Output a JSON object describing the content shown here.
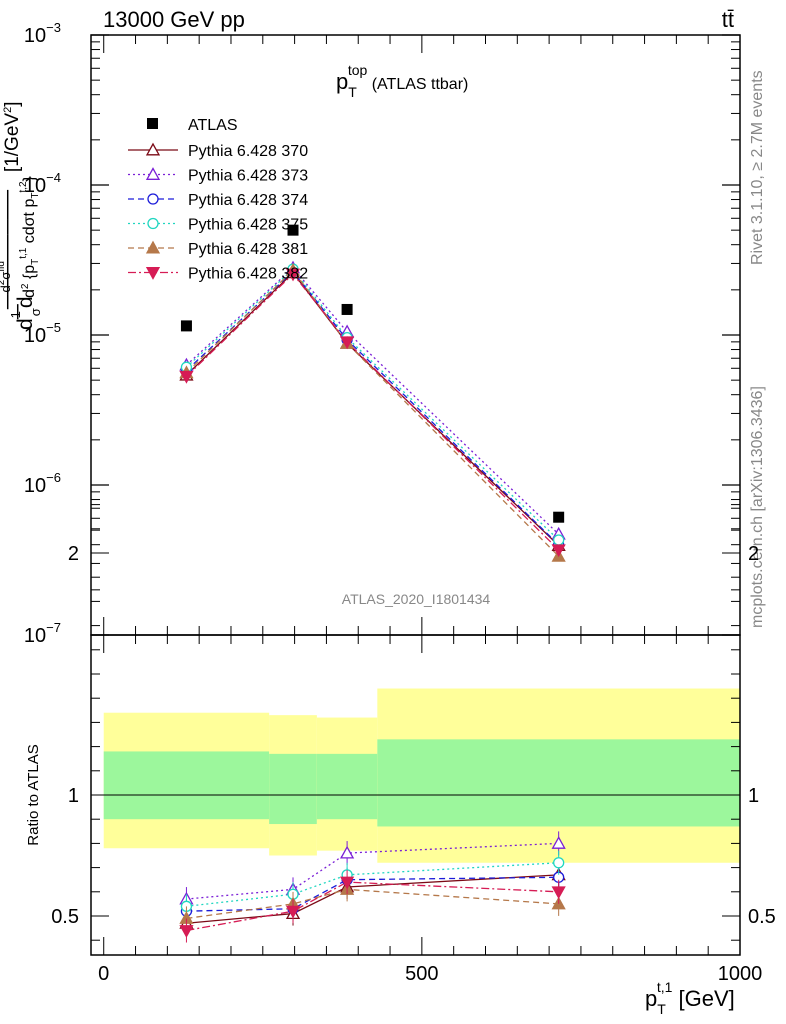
{
  "header": {
    "left": "13000 GeV pp",
    "right": "tt̄"
  },
  "side_labels": {
    "rivet": "Rivet 3.1.10, ≥ 2.7M events",
    "mcplots": "mcplots.cern.ch [arXiv:1306.3436]"
  },
  "chart_data": [
    {
      "type": "line",
      "title_main": "p",
      "title_sub": "T",
      "title_sup": "top",
      "title_rest": " (ATLAS ttbar)",
      "watermark": "ATLAS_2020_I1801434",
      "ylabel": "d²σ^{fid} / d²{p_T^{t,1} cdσt p_T^{t,2}} [1/GeV²] (1/σ dσ)",
      "yscale": "log",
      "ylim": [
        1e-07,
        0.001
      ],
      "xlim": [
        -20,
        1000
      ],
      "ytick_labels": [
        "10",
        "10",
        "10",
        "10",
        "10"
      ],
      "ytick_exponents": [
        "−7",
        "−6",
        "−5",
        "−4",
        "−3"
      ],
      "ytick_values": [
        1e-07,
        1e-06,
        1e-05,
        0.0001,
        0.001
      ],
      "legend_placement": "top-left",
      "data": {
        "name": "ATLAS",
        "x": [
          130,
          297.5,
          382.5,
          715
        ],
        "y": [
          1.15e-05,
          5e-05,
          1.48e-05,
          6.1e-07
        ]
      },
      "series": [
        {
          "name": "Pythia 6.428 370",
          "color": "#7b0a16",
          "marker": "triangle-up-open",
          "dash": "solid",
          "y": [
            5.4e-06,
            2.6e-05,
            8.8e-06,
            3.95e-07
          ]
        },
        {
          "name": "Pythia 6.428 373",
          "color": "#7a1fd6",
          "marker": "triangle-up-open",
          "dash": "dotted",
          "y": [
            6.3e-06,
            2.8e-05,
            1.05e-05,
            4.7e-07
          ]
        },
        {
          "name": "Pythia 6.428 374",
          "color": "#1c1cd9",
          "marker": "circle-open",
          "dash": "dashed",
          "y": [
            5.8e-06,
            2.65e-05,
            9.3e-06,
            4e-07
          ]
        },
        {
          "name": "Pythia 6.428 375",
          "color": "#20d6c0",
          "marker": "circle-open",
          "dash": "dotted",
          "y": [
            6.1e-06,
            2.75e-05,
            9.6e-06,
            4.3e-07
          ]
        },
        {
          "name": "Pythia 6.428 381",
          "color": "#b5784a",
          "marker": "triangle-up-filled",
          "dash": "dashed",
          "y": [
            5.6e-06,
            2.7e-05,
            8.8e-06,
            3.35e-07
          ]
        },
        {
          "name": "Pythia 6.428 382",
          "color": "#d61c55",
          "marker": "triangle-down-filled",
          "dash": "dashdot",
          "y": [
            5.3e-06,
            2.55e-05,
            9e-06,
            3.7e-07
          ]
        }
      ]
    },
    {
      "type": "line",
      "ylabel": "Ratio to ATLAS",
      "xlabel_main": "p",
      "xlabel_sub": "T",
      "xlabel_sup": "t,1",
      "xlabel_rest": " [GeV]",
      "ylim": [
        0.35,
        2.3
      ],
      "xlim": [
        -20,
        1000
      ],
      "xtick_labels": [
        "0",
        "500",
        "1000"
      ],
      "xtick_values": [
        0,
        500,
        1000
      ],
      "ytick_labels": [
        "0.5",
        "1",
        "2"
      ],
      "ytick_values": [
        0.5,
        1,
        2
      ],
      "bands": [
        {
          "x0": 0,
          "x1": 260,
          "inner": [
            0.9,
            1.18
          ],
          "outer": [
            0.78,
            1.34
          ]
        },
        {
          "x0": 260,
          "x1": 335,
          "inner": [
            0.88,
            1.17
          ],
          "outer": [
            0.75,
            1.33
          ]
        },
        {
          "x0": 335,
          "x1": 430,
          "inner": [
            0.9,
            1.17
          ],
          "outer": [
            0.77,
            1.32
          ]
        },
        {
          "x0": 430,
          "x1": 1000,
          "inner": [
            0.87,
            1.23
          ],
          "outer": [
            0.72,
            1.44
          ]
        }
      ],
      "x": [
        130,
        297.5,
        382.5,
        715
      ],
      "series": [
        {
          "name": "Pythia 6.428 370",
          "y": [
            0.47,
            0.51,
            0.62,
            0.67
          ]
        },
        {
          "name": "Pythia 6.428 373",
          "y": [
            0.57,
            0.61,
            0.76,
            0.8
          ]
        },
        {
          "name": "Pythia 6.428 374",
          "y": [
            0.52,
            0.53,
            0.65,
            0.66
          ]
        },
        {
          "name": "Pythia 6.428 375",
          "y": [
            0.54,
            0.59,
            0.67,
            0.72
          ]
        },
        {
          "name": "Pythia 6.428 381",
          "y": [
            0.49,
            0.55,
            0.61,
            0.55
          ]
        },
        {
          "name": "Pythia 6.428 382",
          "y": [
            0.44,
            0.52,
            0.64,
            0.6
          ]
        }
      ]
    }
  ]
}
